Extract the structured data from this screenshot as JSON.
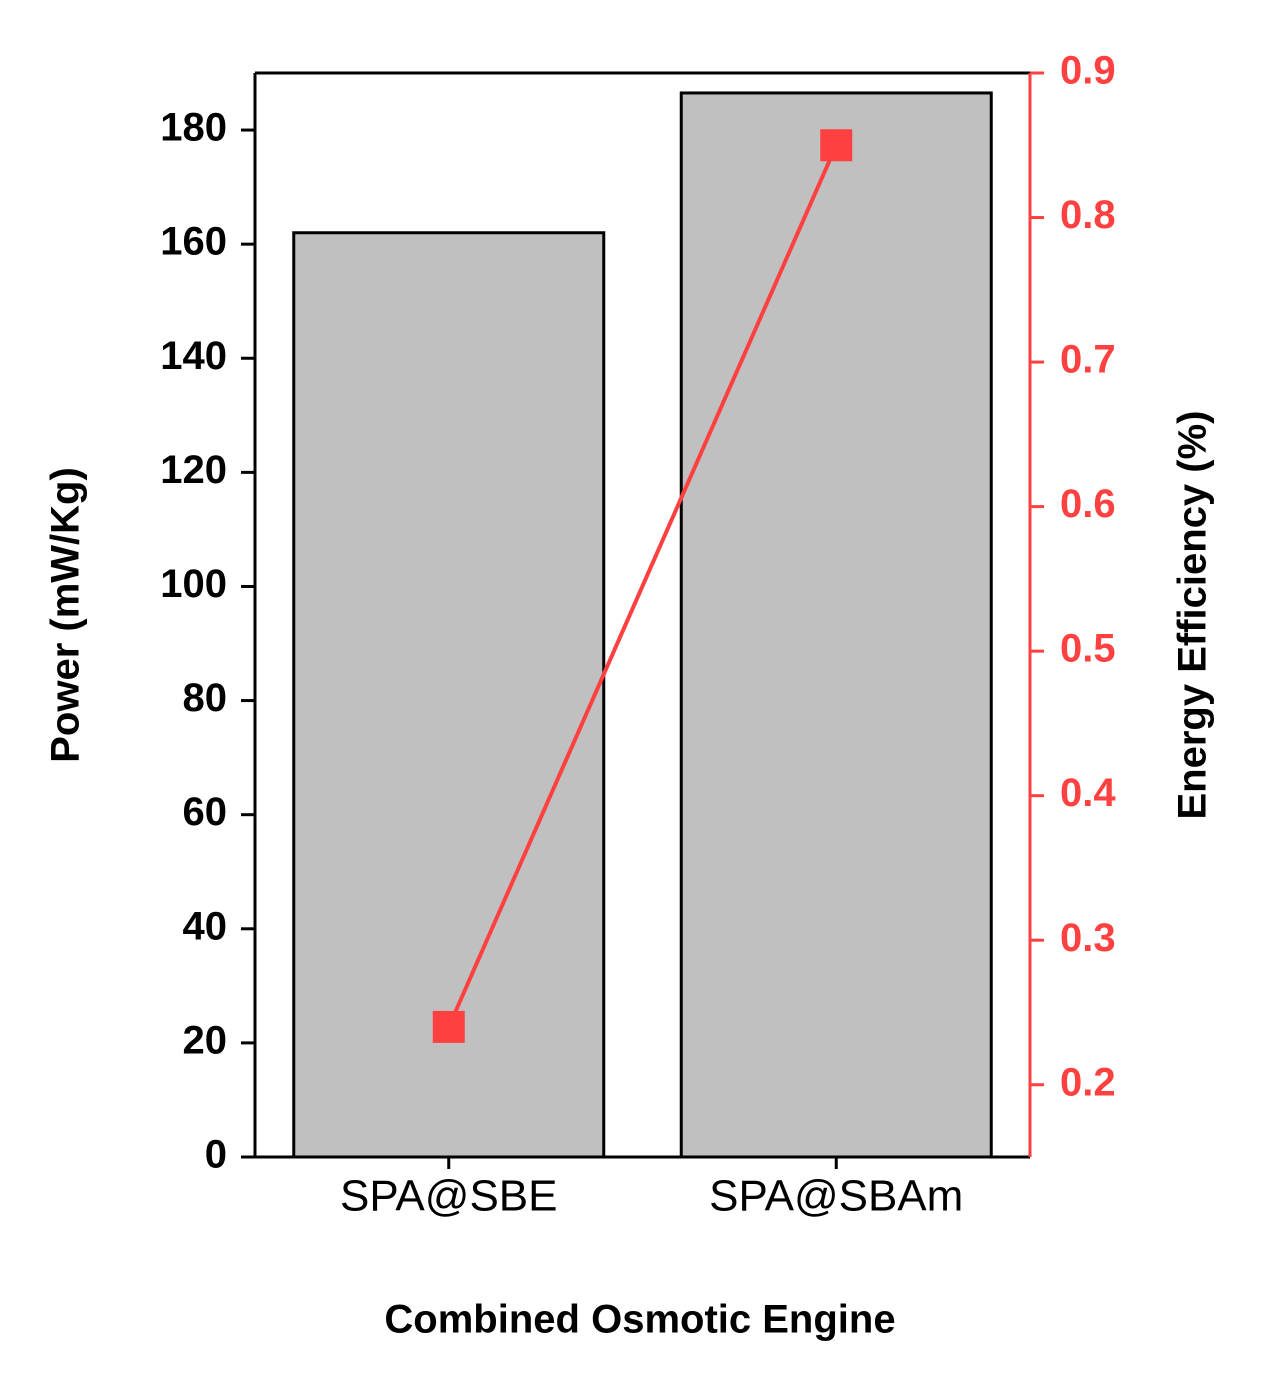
{
  "chart_data": {
    "type": "bar-line",
    "x_label": "Combined Osmotic Engine",
    "y_label": "Power (mW/Kg)",
    "y2_label": "Energy Efficiency (%)",
    "categories": [
      "SPA@SBE",
      "SPA@SBAm"
    ],
    "series": [
      {
        "name": "Power",
        "type": "bar",
        "color": "#c0c0c0",
        "values": [
          162,
          186.5
        ]
      },
      {
        "name": "Energy Efficiency",
        "type": "line",
        "axis": "y2",
        "color": "#ff4040",
        "values": [
          0.24,
          0.85
        ]
      }
    ],
    "ylim": [
      0,
      190
    ],
    "yticks": [
      0,
      20,
      40,
      60,
      80,
      100,
      120,
      140,
      160,
      180
    ],
    "y2lim": [
      0.15,
      0.9
    ],
    "y2ticks": [
      0.2,
      0.3,
      0.4,
      0.5,
      0.6,
      0.7,
      0.8,
      0.9
    ],
    "y2color": "#ff4040"
  }
}
